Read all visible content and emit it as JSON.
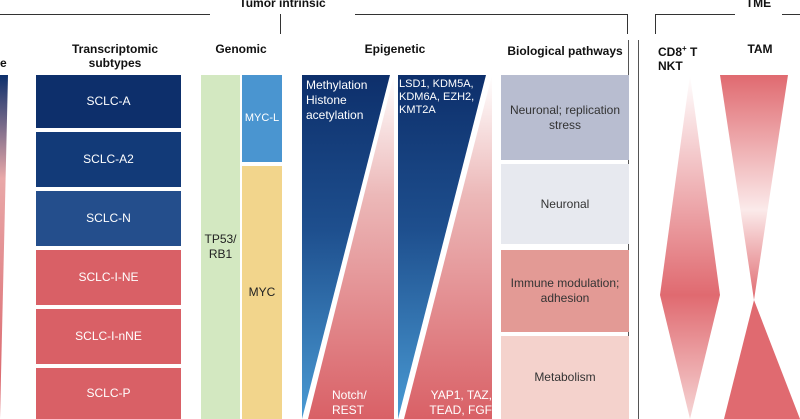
{
  "headers": {
    "tumor_intrinsic": "Tumor intrinsic",
    "tme": "TME",
    "left_partial": "e",
    "transcriptomic": "Transcriptomic subtypes",
    "genomic": "Genomic",
    "epigenetic": "Epigenetic",
    "biological": "Biological pathways",
    "cd8_main": "CD8",
    "cd8_sup": "+",
    "cd8_tail": " T",
    "nkt": "NKT",
    "tam": "TAM"
  },
  "subtypes": [
    "SCLC-A",
    "SCLC-A2",
    "SCLC-N",
    "SCLC-I-NE",
    "SCLC-I-nNE",
    "SCLC-P"
  ],
  "genomic": {
    "tp53": "TP53/ RB1",
    "mycl": "MYC-L",
    "myc": "MYC"
  },
  "epigenetic": {
    "col1_top": "Methylation Histone acetylation",
    "col1_bottom": "Notch/ REST",
    "col2_top": "LSD1, KDM5A, KDM6A, EZH2, KMT2A",
    "col2_bottom": "YAP1, TAZ, TEAD, FGF"
  },
  "pathways": [
    "Neuronal; replication stress",
    "Neuronal",
    "Immune modulation; adhesion",
    "Metabolism"
  ],
  "colors": {
    "navy": "#0d2f6b",
    "mid_blue": "#244e8c",
    "red": "#d96066",
    "light_green": "#d3e8c1",
    "light_blue": "#4a95d0",
    "sand": "#f2d58c",
    "grey_blue": "#b8bdd0",
    "pale_grey": "#e7e9ef",
    "salmon": "#e39a95",
    "pink": "#f4d2cc"
  }
}
